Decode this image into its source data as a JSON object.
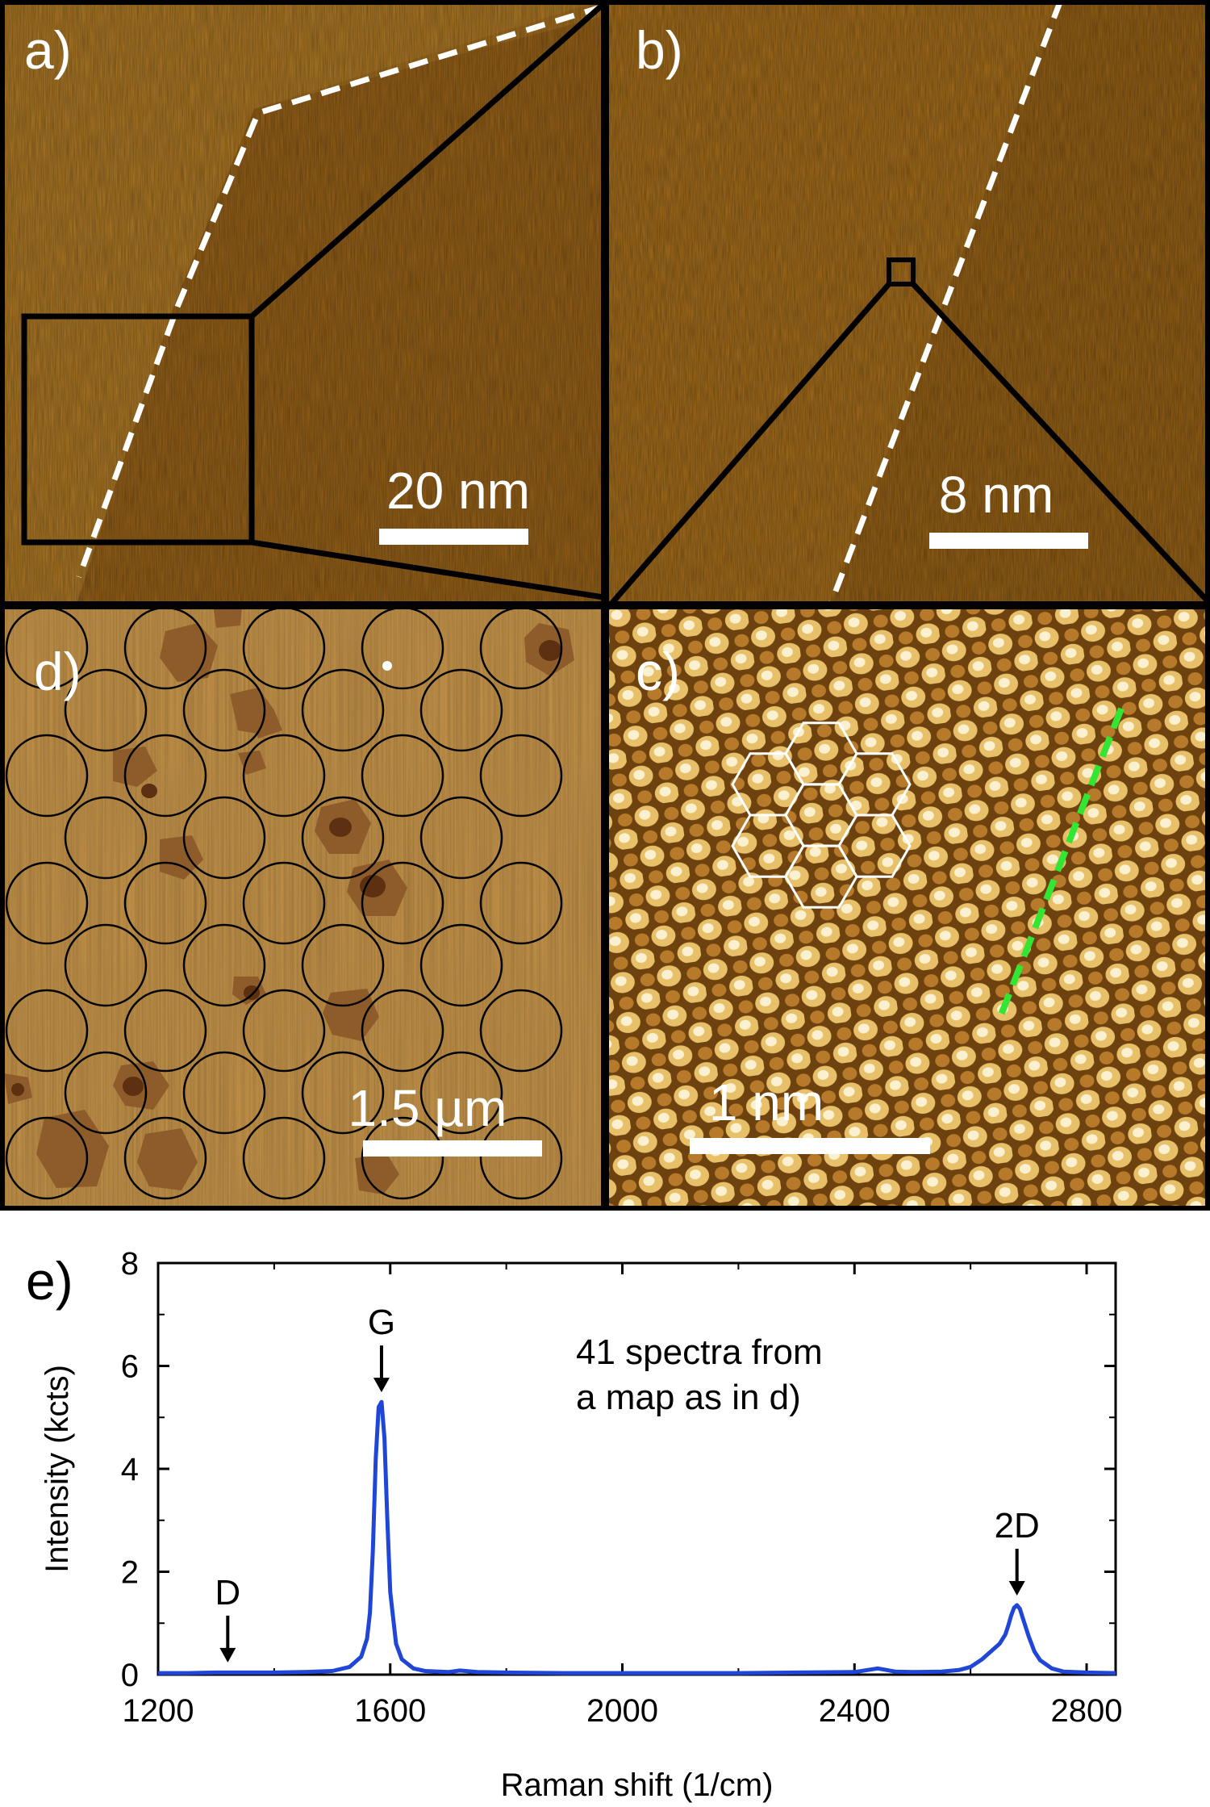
{
  "panels": {
    "a": {
      "label": "a)",
      "scalebar": "20 nm"
    },
    "b": {
      "label": "b)",
      "scalebar": "8 nm"
    },
    "c": {
      "label": "c)",
      "scalebar": "1 nm"
    },
    "d": {
      "label": "d)",
      "scalebar": "1.5 µm"
    },
    "e": {
      "label": "e)"
    }
  },
  "colors": {
    "afm_brown": "#a8711f",
    "afm_dark": "#7a4a10",
    "island": "#8a5a2c",
    "spectrum": "#1f46d6",
    "annotation_green": "#33e633"
  },
  "chart_data": {
    "type": "line",
    "title": "",
    "xlabel": "Raman shift (1/cm)",
    "ylabel": "Intensity (kcts)",
    "xlim": [
      1200,
      2850
    ],
    "ylim": [
      0,
      8
    ],
    "xticks": [
      1200,
      1600,
      2000,
      2400,
      2800
    ],
    "yticks": [
      0,
      2,
      4,
      6,
      8
    ],
    "grid": false,
    "annotation": [
      "41 spectra from",
      "a map as in d)"
    ],
    "peaks": [
      {
        "label": "D",
        "x": 1320,
        "y": 0.05
      },
      {
        "label": "G",
        "x": 1585,
        "y": 5.3
      },
      {
        "label": "2D",
        "x": 2680,
        "y": 1.35
      }
    ],
    "series": [
      {
        "x": [
          1200,
          1250,
          1300,
          1350,
          1400,
          1450,
          1500,
          1530,
          1550,
          1560,
          1565,
          1570,
          1575,
          1580,
          1585,
          1590,
          1595,
          1600,
          1610,
          1620,
          1640,
          1660,
          1700,
          1720,
          1750,
          1800,
          1900,
          2000,
          2100,
          2200,
          2300,
          2400,
          2440,
          2450,
          2470,
          2500,
          2550,
          2580,
          2600,
          2620,
          2640,
          2650,
          2660,
          2665,
          2670,
          2675,
          2680,
          2685,
          2690,
          2700,
          2710,
          2720,
          2740,
          2760,
          2800,
          2850
        ],
        "y": [
          0.03,
          0.03,
          0.04,
          0.04,
          0.04,
          0.05,
          0.07,
          0.15,
          0.35,
          0.7,
          1.2,
          2.4,
          4.2,
          5.2,
          5.3,
          4.6,
          3.0,
          1.6,
          0.6,
          0.3,
          0.12,
          0.07,
          0.05,
          0.08,
          0.05,
          0.04,
          0.03,
          0.03,
          0.03,
          0.03,
          0.04,
          0.05,
          0.12,
          0.1,
          0.06,
          0.05,
          0.06,
          0.09,
          0.15,
          0.3,
          0.5,
          0.6,
          0.78,
          0.95,
          1.15,
          1.3,
          1.35,
          1.28,
          1.1,
          0.75,
          0.45,
          0.28,
          0.12,
          0.06,
          0.04,
          0.03
        ]
      }
    ]
  }
}
